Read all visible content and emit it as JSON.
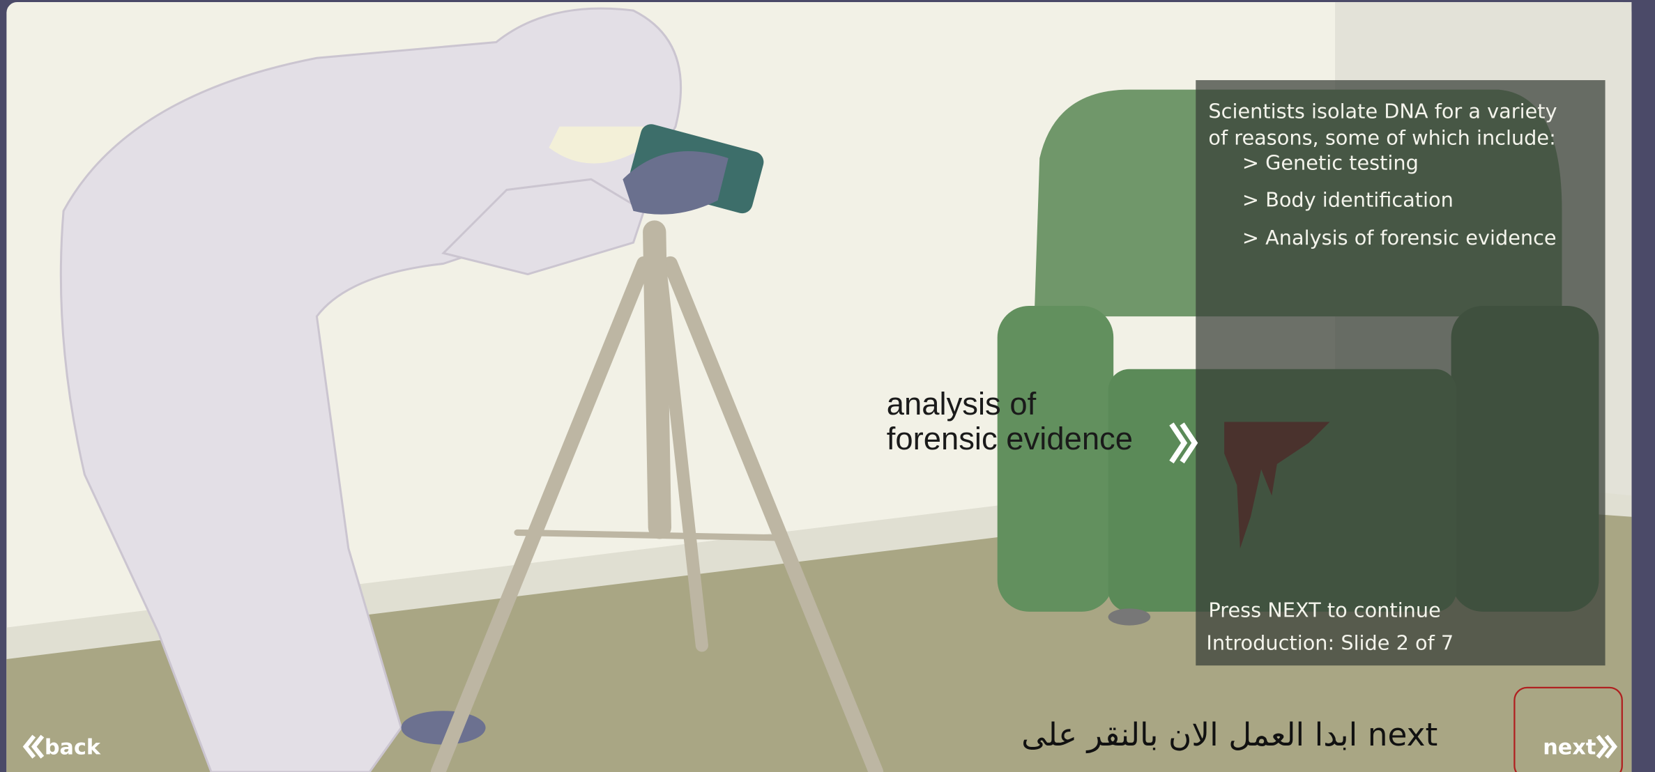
{
  "panel": {
    "lines": [
      "Scientists isolate DNA for a variety",
      "of reasons, some of which include:"
    ],
    "items": [
      "> Genetic testing",
      "> Body identification",
      "> Analysis of forensic evidence"
    ],
    "prompt": "Press NEXT to continue",
    "progress": "Introduction: Slide 2 of 7"
  },
  "callout": {
    "lines": [
      "analysis of",
      "forensic evidence"
    ]
  },
  "instruction": "ابدا العمل الان بالنقر على next",
  "nav": {
    "back": "back",
    "next": "next"
  }
}
